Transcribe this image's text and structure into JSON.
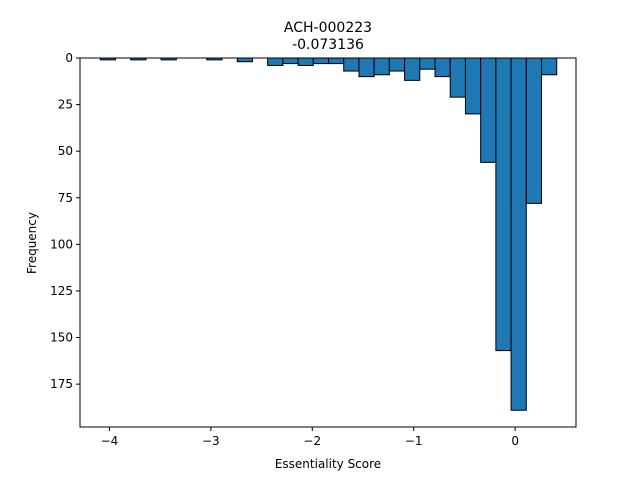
{
  "chart_data": {
    "type": "bar",
    "title": "ACH-000223",
    "subtitle": "-0.073136",
    "xlabel": "Essentiality Score",
    "ylabel": "Frequency",
    "xlim": [
      -4.29,
      0.6
    ],
    "ylim": [
      0,
      198
    ],
    "y_inverted": true,
    "x_ticks": [
      -4,
      -3,
      -2,
      -1,
      0
    ],
    "x_tick_labels": [
      "−4",
      "−3",
      "−2",
      "−1",
      "0"
    ],
    "y_ticks": [
      0,
      25,
      50,
      75,
      100,
      125,
      150,
      175
    ],
    "y_tick_labels": [
      "0",
      "25",
      "50",
      "75",
      "100",
      "125",
      "150",
      "175"
    ],
    "bar_color": "#1f77b4",
    "edge_color": "#000000",
    "grid": false,
    "bins": [
      {
        "x0": -4.09,
        "x1": -3.94,
        "count": 1
      },
      {
        "x0": -3.79,
        "x1": -3.64,
        "count": 1
      },
      {
        "x0": -3.49,
        "x1": -3.34,
        "count": 1
      },
      {
        "x0": -3.04,
        "x1": -2.89,
        "count": 1
      },
      {
        "x0": -2.74,
        "x1": -2.59,
        "count": 2
      },
      {
        "x0": -2.44,
        "x1": -2.29,
        "count": 4
      },
      {
        "x0": -2.29,
        "x1": -2.14,
        "count": 3
      },
      {
        "x0": -2.14,
        "x1": -1.99,
        "count": 4
      },
      {
        "x0": -1.99,
        "x1": -1.84,
        "count": 3
      },
      {
        "x0": -1.84,
        "x1": -1.69,
        "count": 3
      },
      {
        "x0": -1.69,
        "x1": -1.54,
        "count": 7
      },
      {
        "x0": -1.54,
        "x1": -1.39,
        "count": 10
      },
      {
        "x0": -1.39,
        "x1": -1.24,
        "count": 9
      },
      {
        "x0": -1.24,
        "x1": -1.09,
        "count": 7
      },
      {
        "x0": -1.09,
        "x1": -0.94,
        "count": 12
      },
      {
        "x0": -0.94,
        "x1": -0.79,
        "count": 6
      },
      {
        "x0": -0.79,
        "x1": -0.64,
        "count": 10
      },
      {
        "x0": -0.64,
        "x1": -0.49,
        "count": 21
      },
      {
        "x0": -0.49,
        "x1": -0.34,
        "count": 30
      },
      {
        "x0": -0.34,
        "x1": -0.19,
        "count": 56
      },
      {
        "x0": -0.19,
        "x1": -0.04,
        "count": 157
      },
      {
        "x0": -0.04,
        "x1": 0.11,
        "count": 189
      },
      {
        "x0": 0.11,
        "x1": 0.26,
        "count": 78
      },
      {
        "x0": 0.26,
        "x1": 0.41,
        "count": 9
      }
    ]
  }
}
